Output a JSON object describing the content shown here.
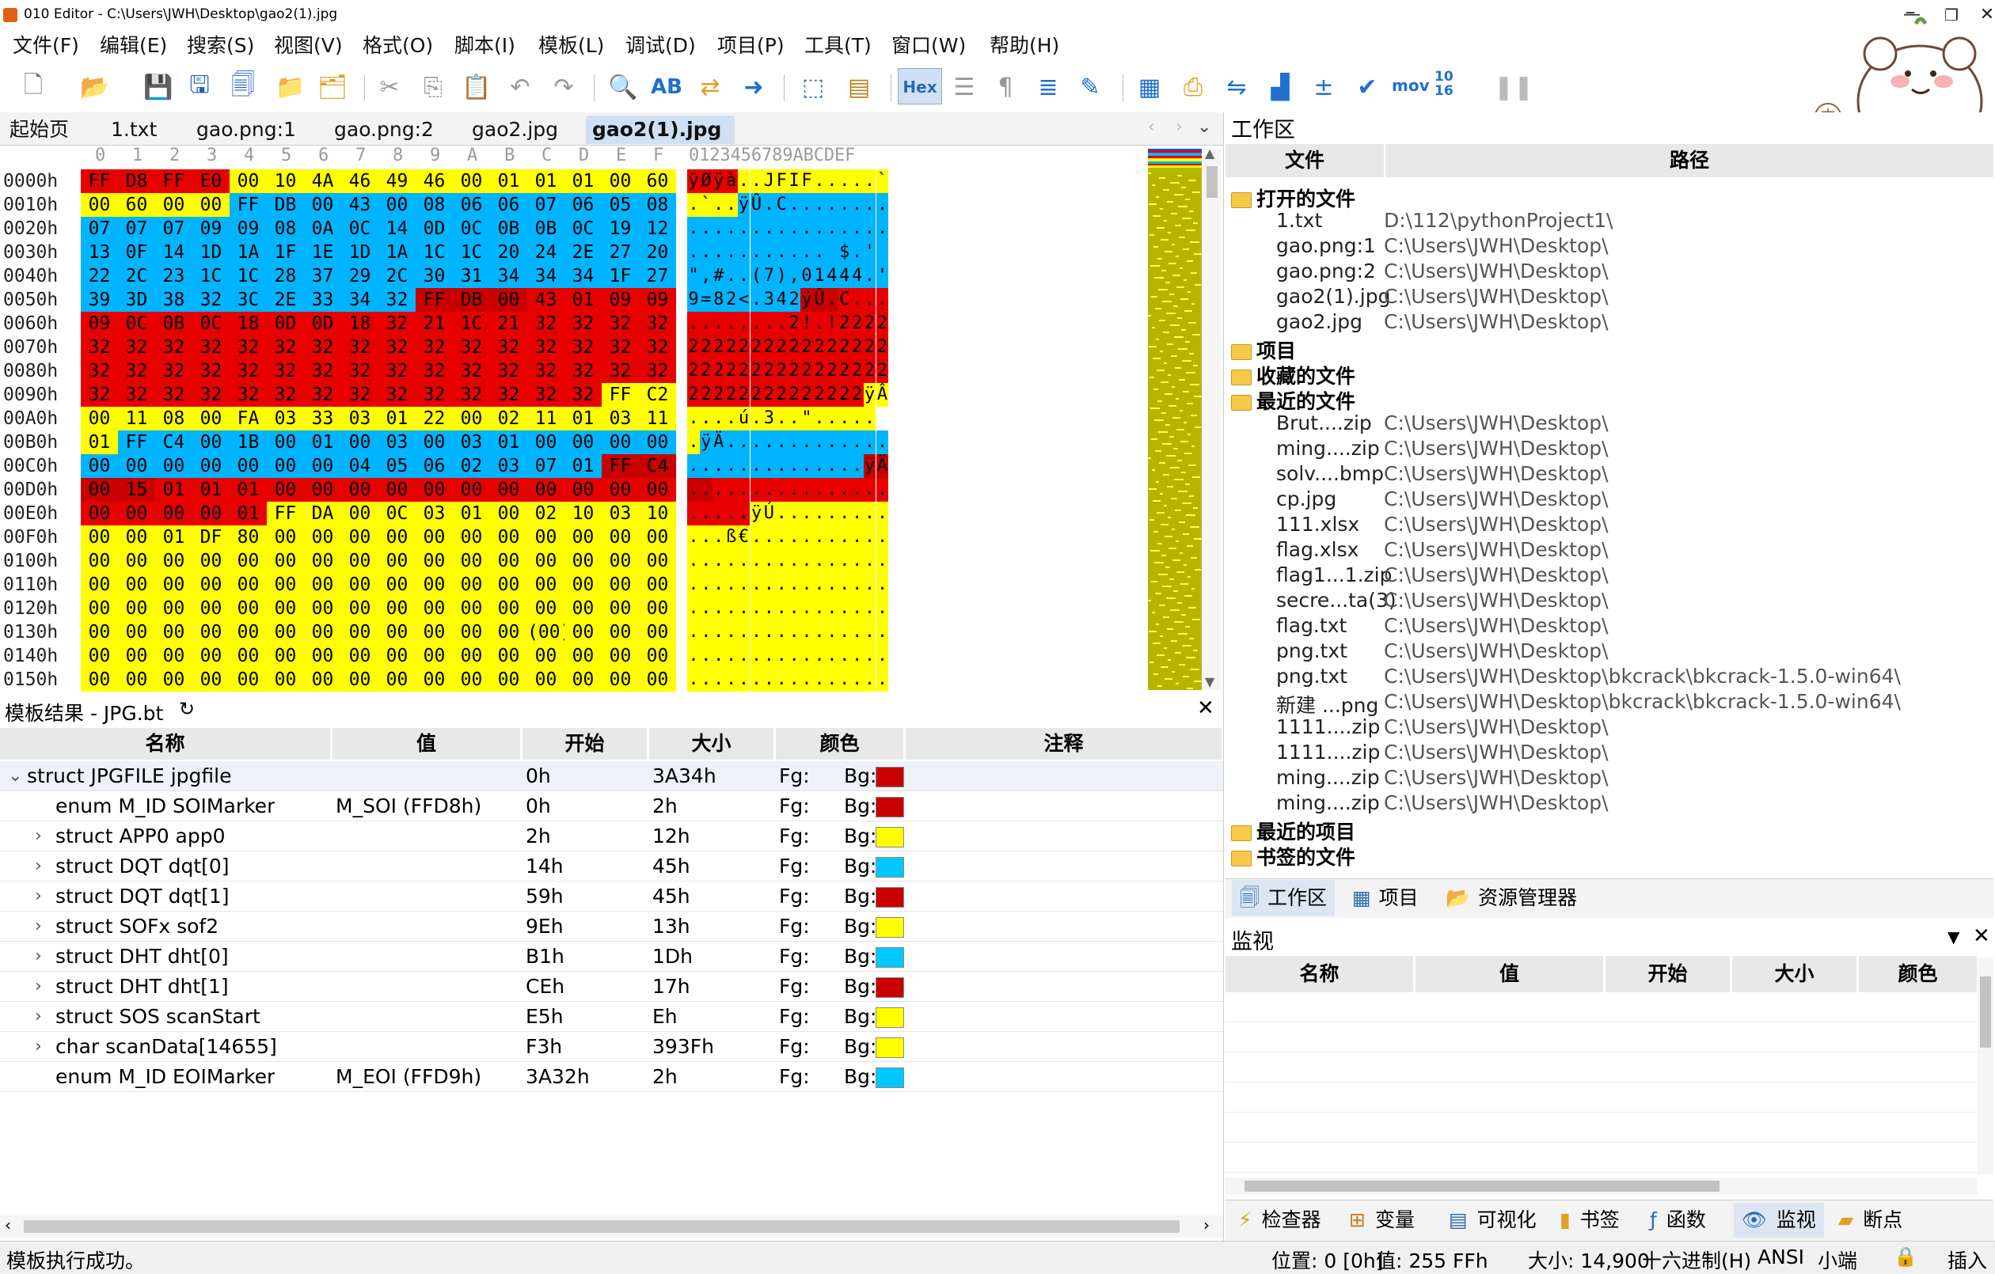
{
  "window": {
    "title": "010 Editor - C:\\Users\\JWH\\Desktop\\gao2(1).jpg"
  },
  "menu": [
    "文件(F)",
    "编辑(E)",
    "搜索(S)",
    "视图(V)",
    "格式(O)",
    "脚本(I)",
    "模板(L)",
    "调试(D)",
    "项目(P)",
    "工具(T)",
    "窗口(W)",
    "帮助(H)"
  ],
  "toolbar": {
    "hex_label": "Hex",
    "mov_label": "mov",
    "conv_label": "10 16"
  },
  "tabs": [
    "起始页",
    "1.txt",
    "gao.png:1",
    "gao.png:2",
    "gao2.jpg",
    "gao2(1).jpg"
  ],
  "hex": {
    "col_headers": [
      "0",
      "1",
      "2",
      "3",
      "4",
      "5",
      "6",
      "7",
      "8",
      "9",
      "A",
      "B",
      "C",
      "D",
      "E",
      "F"
    ],
    "ascii_header": "0123456789ABCDEF",
    "rows": [
      {
        "off": "0000h",
        "bytes": [
          "FF",
          "D8",
          "FF",
          "E0",
          "00",
          "10",
          "4A",
          "46",
          "49",
          "46",
          "00",
          "01",
          "01",
          "01",
          "00",
          "60"
        ],
        "colors": "rrrryyyyyyyyyyyy",
        "ascii": "ÿØÿà..JFIF.....`"
      },
      {
        "off": "0010h",
        "bytes": [
          "00",
          "60",
          "00",
          "00",
          "FF",
          "DB",
          "00",
          "43",
          "00",
          "08",
          "06",
          "06",
          "07",
          "06",
          "05",
          "08"
        ],
        "colors": "yyyybbbbbbbbbbbb",
        "ascii": ".`..ÿÛ.C........"
      },
      {
        "off": "0020h",
        "bytes": [
          "07",
          "07",
          "07",
          "09",
          "09",
          "08",
          "0A",
          "0C",
          "14",
          "0D",
          "0C",
          "0B",
          "0B",
          "0C",
          "19",
          "12"
        ],
        "colors": "bbbbbbbbbbbbbbbb",
        "ascii": "................"
      },
      {
        "off": "0030h",
        "bytes": [
          "13",
          "0F",
          "14",
          "1D",
          "1A",
          "1F",
          "1E",
          "1D",
          "1A",
          "1C",
          "1C",
          "20",
          "24",
          "2E",
          "27",
          "20"
        ],
        "colors": "bbbbbbbbbbbbbbbb",
        "ascii": "........... $.' "
      },
      {
        "off": "0040h",
        "bytes": [
          "22",
          "2C",
          "23",
          "1C",
          "1C",
          "28",
          "37",
          "29",
          "2C",
          "30",
          "31",
          "34",
          "34",
          "34",
          "1F",
          "27"
        ],
        "colors": "bbbbbbbbbbbbbbbb",
        "ascii": "\",#..(7),01444.'"
      },
      {
        "off": "0050h",
        "bytes": [
          "39",
          "3D",
          "38",
          "32",
          "3C",
          "2E",
          "33",
          "34",
          "32",
          "FF",
          "DB",
          "00",
          "43",
          "01",
          "09",
          "09"
        ],
        "colors": "bbbbbbbbbdddrrrr",
        "ascii": "9=82<.342ÿÛ.C..."
      },
      {
        "off": "0060h",
        "bytes": [
          "09",
          "0C",
          "0B",
          "0C",
          "18",
          "0D",
          "0D",
          "18",
          "32",
          "21",
          "1C",
          "21",
          "32",
          "32",
          "32",
          "32"
        ],
        "colors": "rrrrrrrrrrrrrrrr",
        "ascii": "........2!.!2222"
      },
      {
        "off": "0070h",
        "bytes": [
          "32",
          "32",
          "32",
          "32",
          "32",
          "32",
          "32",
          "32",
          "32",
          "32",
          "32",
          "32",
          "32",
          "32",
          "32",
          "32"
        ],
        "colors": "rrrrrrrrrrrrrrrr",
        "ascii": "2222222222222222"
      },
      {
        "off": "0080h",
        "bytes": [
          "32",
          "32",
          "32",
          "32",
          "32",
          "32",
          "32",
          "32",
          "32",
          "32",
          "32",
          "32",
          "32",
          "32",
          "32",
          "32"
        ],
        "colors": "rrrrrrrrrrrrrrrr",
        "ascii": "2222222222222222"
      },
      {
        "off": "0090h",
        "bytes": [
          "32",
          "32",
          "32",
          "32",
          "32",
          "32",
          "32",
          "32",
          "32",
          "32",
          "32",
          "32",
          "32",
          "32",
          "FF",
          "C2"
        ],
        "colors": "rrrrrrrrrrrrrryy",
        "ascii": "22222222222222ÿÂ"
      },
      {
        "off": "00A0h",
        "bytes": [
          "00",
          "11",
          "08",
          "00",
          "FA",
          "03",
          "33",
          "03",
          "01",
          "22",
          "00",
          "02",
          "11",
          "01",
          "03",
          "11"
        ],
        "colors": "yyyyyyyyyyyyyyyy",
        "ascii": "....ú.3..\"....."
      },
      {
        "off": "00B0h",
        "bytes": [
          "01",
          "FF",
          "C4",
          "00",
          "1B",
          "00",
          "01",
          "00",
          "03",
          "00",
          "03",
          "01",
          "00",
          "00",
          "00",
          "00"
        ],
        "colors": "ybbbbbbbbbbbbbbb",
        "ascii": ".ÿÄ............."
      },
      {
        "off": "00C0h",
        "bytes": [
          "00",
          "00",
          "00",
          "00",
          "00",
          "00",
          "00",
          "04",
          "05",
          "06",
          "02",
          "03",
          "07",
          "01",
          "FF",
          "C4"
        ],
        "colors": "bbbbbbbbbbbbbbdd",
        "ascii": "..............ÿÄ"
      },
      {
        "off": "00D0h",
        "bytes": [
          "00",
          "15",
          "01",
          "01",
          "01",
          "00",
          "00",
          "00",
          "00",
          "00",
          "00",
          "00",
          "00",
          "00",
          "00",
          "00"
        ],
        "colors": "ddrrrrrrrrrrrrrr",
        "ascii": "................"
      },
      {
        "off": "00E0h",
        "bytes": [
          "00",
          "00",
          "00",
          "00",
          "01",
          "FF",
          "DA",
          "00",
          "0C",
          "03",
          "01",
          "00",
          "02",
          "10",
          "03",
          "10"
        ],
        "colors": "rrrrryyyyyyyyyyy",
        "ascii": ".....ÿÚ........."
      },
      {
        "off": "00F0h",
        "bytes": [
          "00",
          "00",
          "01",
          "DF",
          "80",
          "00",
          "00",
          "00",
          "00",
          "00",
          "00",
          "00",
          "00",
          "00",
          "00",
          "00"
        ],
        "colors": "yyyyyyyyyyyyyyyy",
        "ascii": "...ß€..........."
      },
      {
        "off": "0100h",
        "bytes": [
          "00",
          "00",
          "00",
          "00",
          "00",
          "00",
          "00",
          "00",
          "00",
          "00",
          "00",
          "00",
          "00",
          "00",
          "00",
          "00"
        ],
        "colors": "yyyyyyyyyyyyyyyy",
        "ascii": "................"
      },
      {
        "off": "0110h",
        "bytes": [
          "00",
          "00",
          "00",
          "00",
          "00",
          "00",
          "00",
          "00",
          "00",
          "00",
          "00",
          "00",
          "00",
          "00",
          "00",
          "00"
        ],
        "colors": "yyyyyyyyyyyyyyyy",
        "ascii": "................"
      },
      {
        "off": "0120h",
        "bytes": [
          "00",
          "00",
          "00",
          "00",
          "00",
          "00",
          "00",
          "00",
          "00",
          "00",
          "00",
          "00",
          "00",
          "00",
          "00",
          "00"
        ],
        "colors": "yyyyyyyyyyyyyyyy",
        "ascii": "................"
      },
      {
        "off": "0130h",
        "bytes": [
          "00",
          "00",
          "00",
          "00",
          "00",
          "00",
          "00",
          "00",
          "00",
          "00",
          "00",
          "00",
          "(00)",
          "00",
          "00",
          "00"
        ],
        "colors": "yyyyyyyyyyyyyyyy",
        "ascii": "................"
      },
      {
        "off": "0140h",
        "bytes": [
          "00",
          "00",
          "00",
          "00",
          "00",
          "00",
          "00",
          "00",
          "00",
          "00",
          "00",
          "00",
          "00",
          "00",
          "00",
          "00"
        ],
        "colors": "yyyyyyyyyyyyyyyy",
        "ascii": "................"
      },
      {
        "off": "0150h",
        "bytes": [
          "00",
          "00",
          "00",
          "00",
          "00",
          "00",
          "00",
          "00",
          "00",
          "00",
          "00",
          "00",
          "00",
          "00",
          "00",
          "00"
        ],
        "colors": "yyyyyyyyyyyyyyyy",
        "ascii": "................"
      }
    ]
  },
  "template": {
    "title": "模板结果 - JPG.bt",
    "columns": [
      "名称",
      "值",
      "开始",
      "大小",
      "颜色",
      "注释"
    ],
    "rows": [
      {
        "name": "struct JPGFILE jpgfile",
        "value": "",
        "start": "0h",
        "size": "3A34h",
        "fg": "Fg:",
        "bg": "Bg:",
        "color": "#c80000",
        "expand": "v",
        "indent": 0
      },
      {
        "name": "enum M_ID SOIMarker",
        "value": "M_SOI (FFD8h)",
        "start": "0h",
        "size": "2h",
        "fg": "Fg:",
        "bg": "Bg:",
        "color": "#c80000",
        "expand": "",
        "indent": 1
      },
      {
        "name": "struct APP0 app0",
        "value": "",
        "start": "2h",
        "size": "12h",
        "fg": "Fg:",
        "bg": "Bg:",
        "color": "#ffff00",
        "expand": ">",
        "indent": 1
      },
      {
        "name": "struct DQT dqt[0]",
        "value": "",
        "start": "14h",
        "size": "45h",
        "fg": "Fg:",
        "bg": "Bg:",
        "color": "#00c8ff",
        "expand": ">",
        "indent": 1
      },
      {
        "name": "struct DQT dqt[1]",
        "value": "",
        "start": "59h",
        "size": "45h",
        "fg": "Fg:",
        "bg": "Bg:",
        "color": "#c80000",
        "expand": ">",
        "indent": 1
      },
      {
        "name": "struct SOFx sof2",
        "value": "",
        "start": "9Eh",
        "size": "13h",
        "fg": "Fg:",
        "bg": "Bg:",
        "color": "#ffff00",
        "expand": ">",
        "indent": 1
      },
      {
        "name": "struct DHT dht[0]",
        "value": "",
        "start": "B1h",
        "size": "1Dh",
        "fg": "Fg:",
        "bg": "Bg:",
        "color": "#00c8ff",
        "expand": ">",
        "indent": 1
      },
      {
        "name": "struct DHT dht[1]",
        "value": "",
        "start": "CEh",
        "size": "17h",
        "fg": "Fg:",
        "bg": "Bg:",
        "color": "#c80000",
        "expand": ">",
        "indent": 1
      },
      {
        "name": "struct SOS scanStart",
        "value": "",
        "start": "E5h",
        "size": "Eh",
        "fg": "Fg:",
        "bg": "Bg:",
        "color": "#ffff00",
        "expand": ">",
        "indent": 1
      },
      {
        "name": "char scanData[14655]",
        "value": "",
        "start": "F3h",
        "size": "393Fh",
        "fg": "Fg:",
        "bg": "Bg:",
        "color": "#ffff00",
        "expand": ">",
        "indent": 1
      },
      {
        "name": "enum M_ID EOIMarker",
        "value": "M_EOI (FFD9h)",
        "start": "3A32h",
        "size": "2h",
        "fg": "Fg:",
        "bg": "Bg:",
        "color": "#00c8ff",
        "expand": "",
        "indent": 1
      }
    ]
  },
  "workspace": {
    "title": "工作区",
    "col_file": "文件",
    "col_path": "路径",
    "open_files_label": "打开的文件",
    "open_files": [
      {
        "name": "1.txt",
        "path": "D:\\112\\pythonProject1\\"
      },
      {
        "name": "gao.png:1",
        "path": "C:\\Users\\JWH\\Desktop\\"
      },
      {
        "name": "gao.png:2",
        "path": "C:\\Users\\JWH\\Desktop\\"
      },
      {
        "name": "gao2(1).jpg",
        "path": "C:\\Users\\JWH\\Desktop\\"
      },
      {
        "name": "gao2.jpg",
        "path": "C:\\Users\\JWH\\Desktop\\"
      }
    ],
    "projects_label": "项目",
    "favorites_label": "收藏的文件",
    "recent_files_label": "最近的文件",
    "recent_files": [
      {
        "name": "Brut....zip",
        "path": "C:\\Users\\JWH\\Desktop\\"
      },
      {
        "name": "ming....zip",
        "path": "C:\\Users\\JWH\\Desktop\\"
      },
      {
        "name": "solv....bmp",
        "path": "C:\\Users\\JWH\\Desktop\\"
      },
      {
        "name": "cp.jpg",
        "path": "C:\\Users\\JWH\\Desktop\\"
      },
      {
        "name": "111.xlsx",
        "path": "C:\\Users\\JWH\\Desktop\\"
      },
      {
        "name": "flag.xlsx",
        "path": "C:\\Users\\JWH\\Desktop\\"
      },
      {
        "name": "flag1...1.zip",
        "path": "C:\\Users\\JWH\\Desktop\\"
      },
      {
        "name": "secre...ta(3)",
        "path": "C:\\Users\\JWH\\Desktop\\"
      },
      {
        "name": "flag.txt",
        "path": "C:\\Users\\JWH\\Desktop\\"
      },
      {
        "name": "png.txt",
        "path": "C:\\Users\\JWH\\Desktop\\"
      },
      {
        "name": "png.txt",
        "path": "C:\\Users\\JWH\\Desktop\\bkcrack\\bkcrack-1.5.0-win64\\"
      },
      {
        "name": "新建 ...png",
        "path": "C:\\Users\\JWH\\Desktop\\bkcrack\\bkcrack-1.5.0-win64\\"
      },
      {
        "name": "1111....zip",
        "path": "C:\\Users\\JWH\\Desktop\\"
      },
      {
        "name": "1111....zip",
        "path": "C:\\Users\\JWH\\Desktop\\"
      },
      {
        "name": "ming....zip",
        "path": "C:\\Users\\JWH\\Desktop\\"
      },
      {
        "name": "ming....zip",
        "path": "C:\\Users\\JWH\\Desktop\\"
      }
    ],
    "recent_projects_label": "最近的项目",
    "bookmarked_label": "书签的文件",
    "bottom_tabs": [
      "工作区",
      "项目",
      "资源管理器"
    ]
  },
  "watch": {
    "title": "监视",
    "columns": [
      "名称",
      "值",
      "开始",
      "大小",
      "颜色"
    ]
  },
  "bottom_tabs": [
    "检查器",
    "变量",
    "可视化",
    "书签",
    "函数",
    "监视",
    "断点"
  ],
  "status": {
    "left": "模板执行成功。",
    "position": "位置: 0 [0h]",
    "value": "值: 255 FFh",
    "size": "大小: 14,900",
    "mode": "十六进制(H)",
    "encoding": "ANSI",
    "endian": "小端",
    "insert": "插入"
  }
}
